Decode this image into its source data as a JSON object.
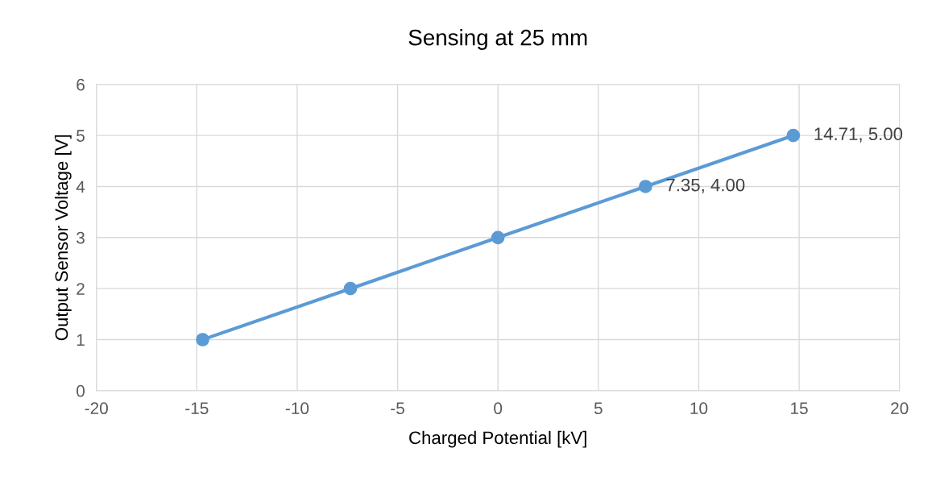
{
  "chart_data": {
    "type": "line",
    "title": "Sensing at 25 mm",
    "xlabel": "Charged Potential [kV]",
    "ylabel": "Output Sensor Voltage [V]",
    "x": [
      -14.71,
      -7.35,
      0,
      7.35,
      14.71
    ],
    "series": [
      {
        "color": "#5b9bd5",
        "values": [
          1,
          2,
          3,
          4,
          5
        ]
      }
    ],
    "xlim": [
      -20,
      20
    ],
    "xticks": [
      -20,
      -15,
      -10,
      -5,
      0,
      5,
      10,
      15,
      20
    ],
    "ylim": [
      0,
      6
    ],
    "yticks": [
      0,
      1,
      2,
      3,
      4,
      5,
      6
    ],
    "grid": true,
    "marker": "circle",
    "line_style": "solid",
    "annotations": [
      {
        "text": "7.35, 4.00",
        "x": 7.35,
        "y": 4
      },
      {
        "text": "14.71, 5.00",
        "x": 14.71,
        "y": 5
      }
    ]
  }
}
